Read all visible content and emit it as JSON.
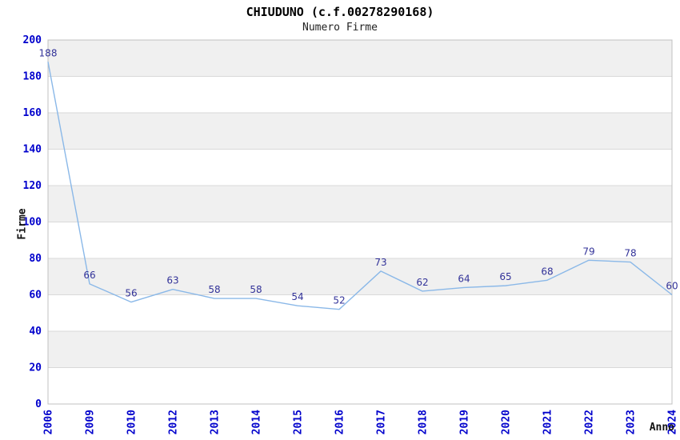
{
  "chart_data": {
    "type": "line",
    "title": "CHIUDUNO (c.f.00278290168)",
    "subtitle": "Numero Firme",
    "xlabel": "Anno",
    "ylabel": "Firme",
    "categories": [
      "2006",
      "2009",
      "2010",
      "2012",
      "2013",
      "2014",
      "2015",
      "2016",
      "2017",
      "2018",
      "2019",
      "2020",
      "2021",
      "2022",
      "2023",
      "2024"
    ],
    "values": [
      188,
      66,
      56,
      63,
      58,
      58,
      54,
      52,
      73,
      62,
      64,
      65,
      68,
      79,
      78,
      60
    ],
    "ylim": [
      0,
      200
    ],
    "ytick_step": 20,
    "ytick_labels": [
      "0",
      "20",
      "40",
      "60",
      "80",
      "100",
      "120",
      "140",
      "160",
      "180",
      "200"
    ],
    "grid": true,
    "legend": "none",
    "data_labels": true,
    "colors": {
      "line": "#8ab8e8",
      "data_label": "#333399",
      "tick_label": "#0000cc",
      "axis_title": "#111111",
      "band": "#f0f0f0",
      "gridline": "#d9d9d9",
      "border": "#c0c0c0",
      "background": "#ffffff",
      "title": "#000000"
    }
  }
}
